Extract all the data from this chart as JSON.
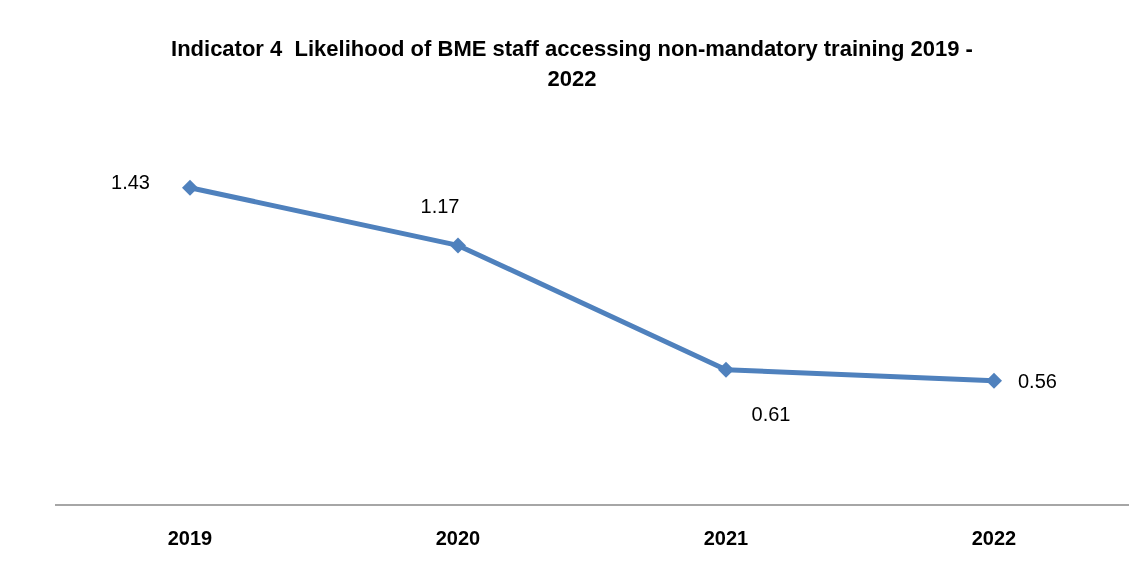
{
  "chart_data": {
    "type": "line",
    "title": "Indicator 4  Likelihood of BME staff accessing non-mandatory training 2019 - 2022",
    "categories": [
      "2019",
      "2020",
      "2021",
      "2022"
    ],
    "series": [
      {
        "color": "#4f81bd",
        "values": [
          1.43,
          1.17,
          0.61,
          0.56
        ]
      }
    ],
    "tick_labels": "x",
    "grid": false,
    "legend": false,
    "marker": "diamond",
    "line_style": "solid",
    "data_labels": true
  }
}
